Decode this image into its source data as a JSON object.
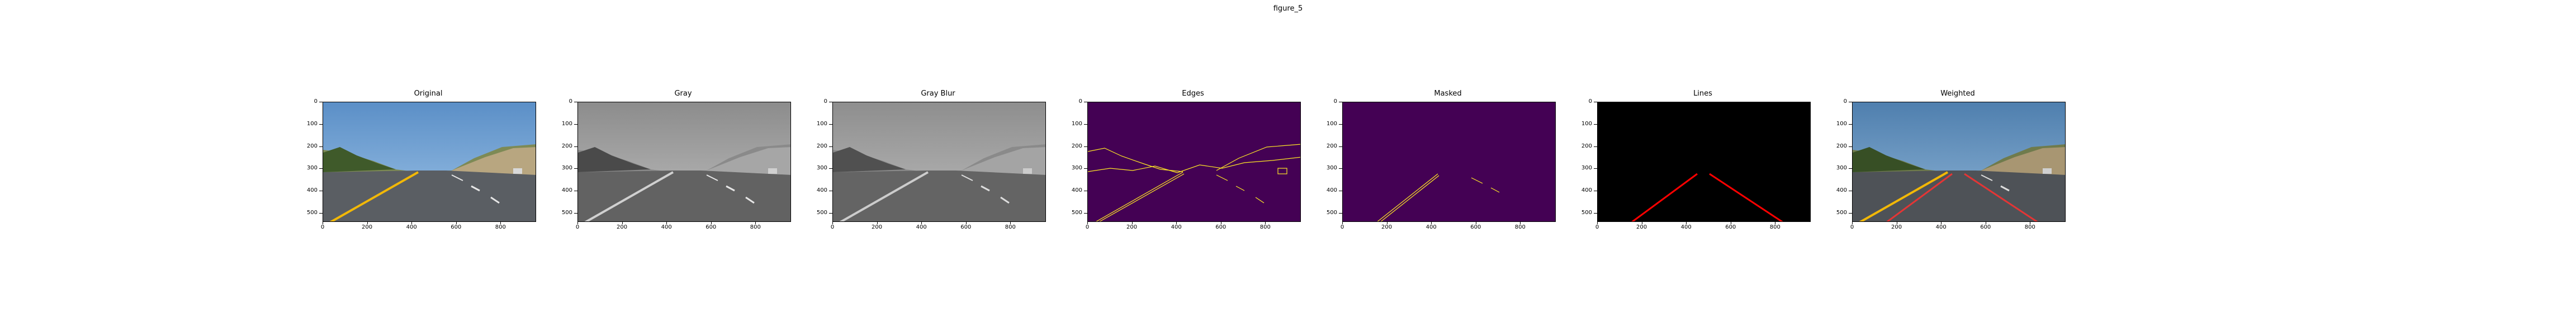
{
  "window": {
    "title": "figure_5"
  },
  "panels": [
    {
      "id": "original",
      "title": "Original"
    },
    {
      "id": "gray",
      "title": "Gray"
    },
    {
      "id": "gray-blur",
      "title": "Gray Blur"
    },
    {
      "id": "edges",
      "title": "Edges"
    },
    {
      "id": "masked",
      "title": "Masked"
    },
    {
      "id": "lines",
      "title": "Lines"
    },
    {
      "id": "weighted",
      "title": "Weighted"
    }
  ],
  "axes": {
    "x_ticks": [
      "0",
      "200",
      "400",
      "600",
      "800"
    ],
    "y_ticks": [
      "0",
      "100",
      "200",
      "300",
      "400",
      "500"
    ]
  },
  "colors": {
    "edges_background": "#440154",
    "edge_pixels": "#fde725",
    "lines_background": "#000000",
    "lane_line": "#ff0000",
    "lane_yellow": "#f2b807"
  }
}
